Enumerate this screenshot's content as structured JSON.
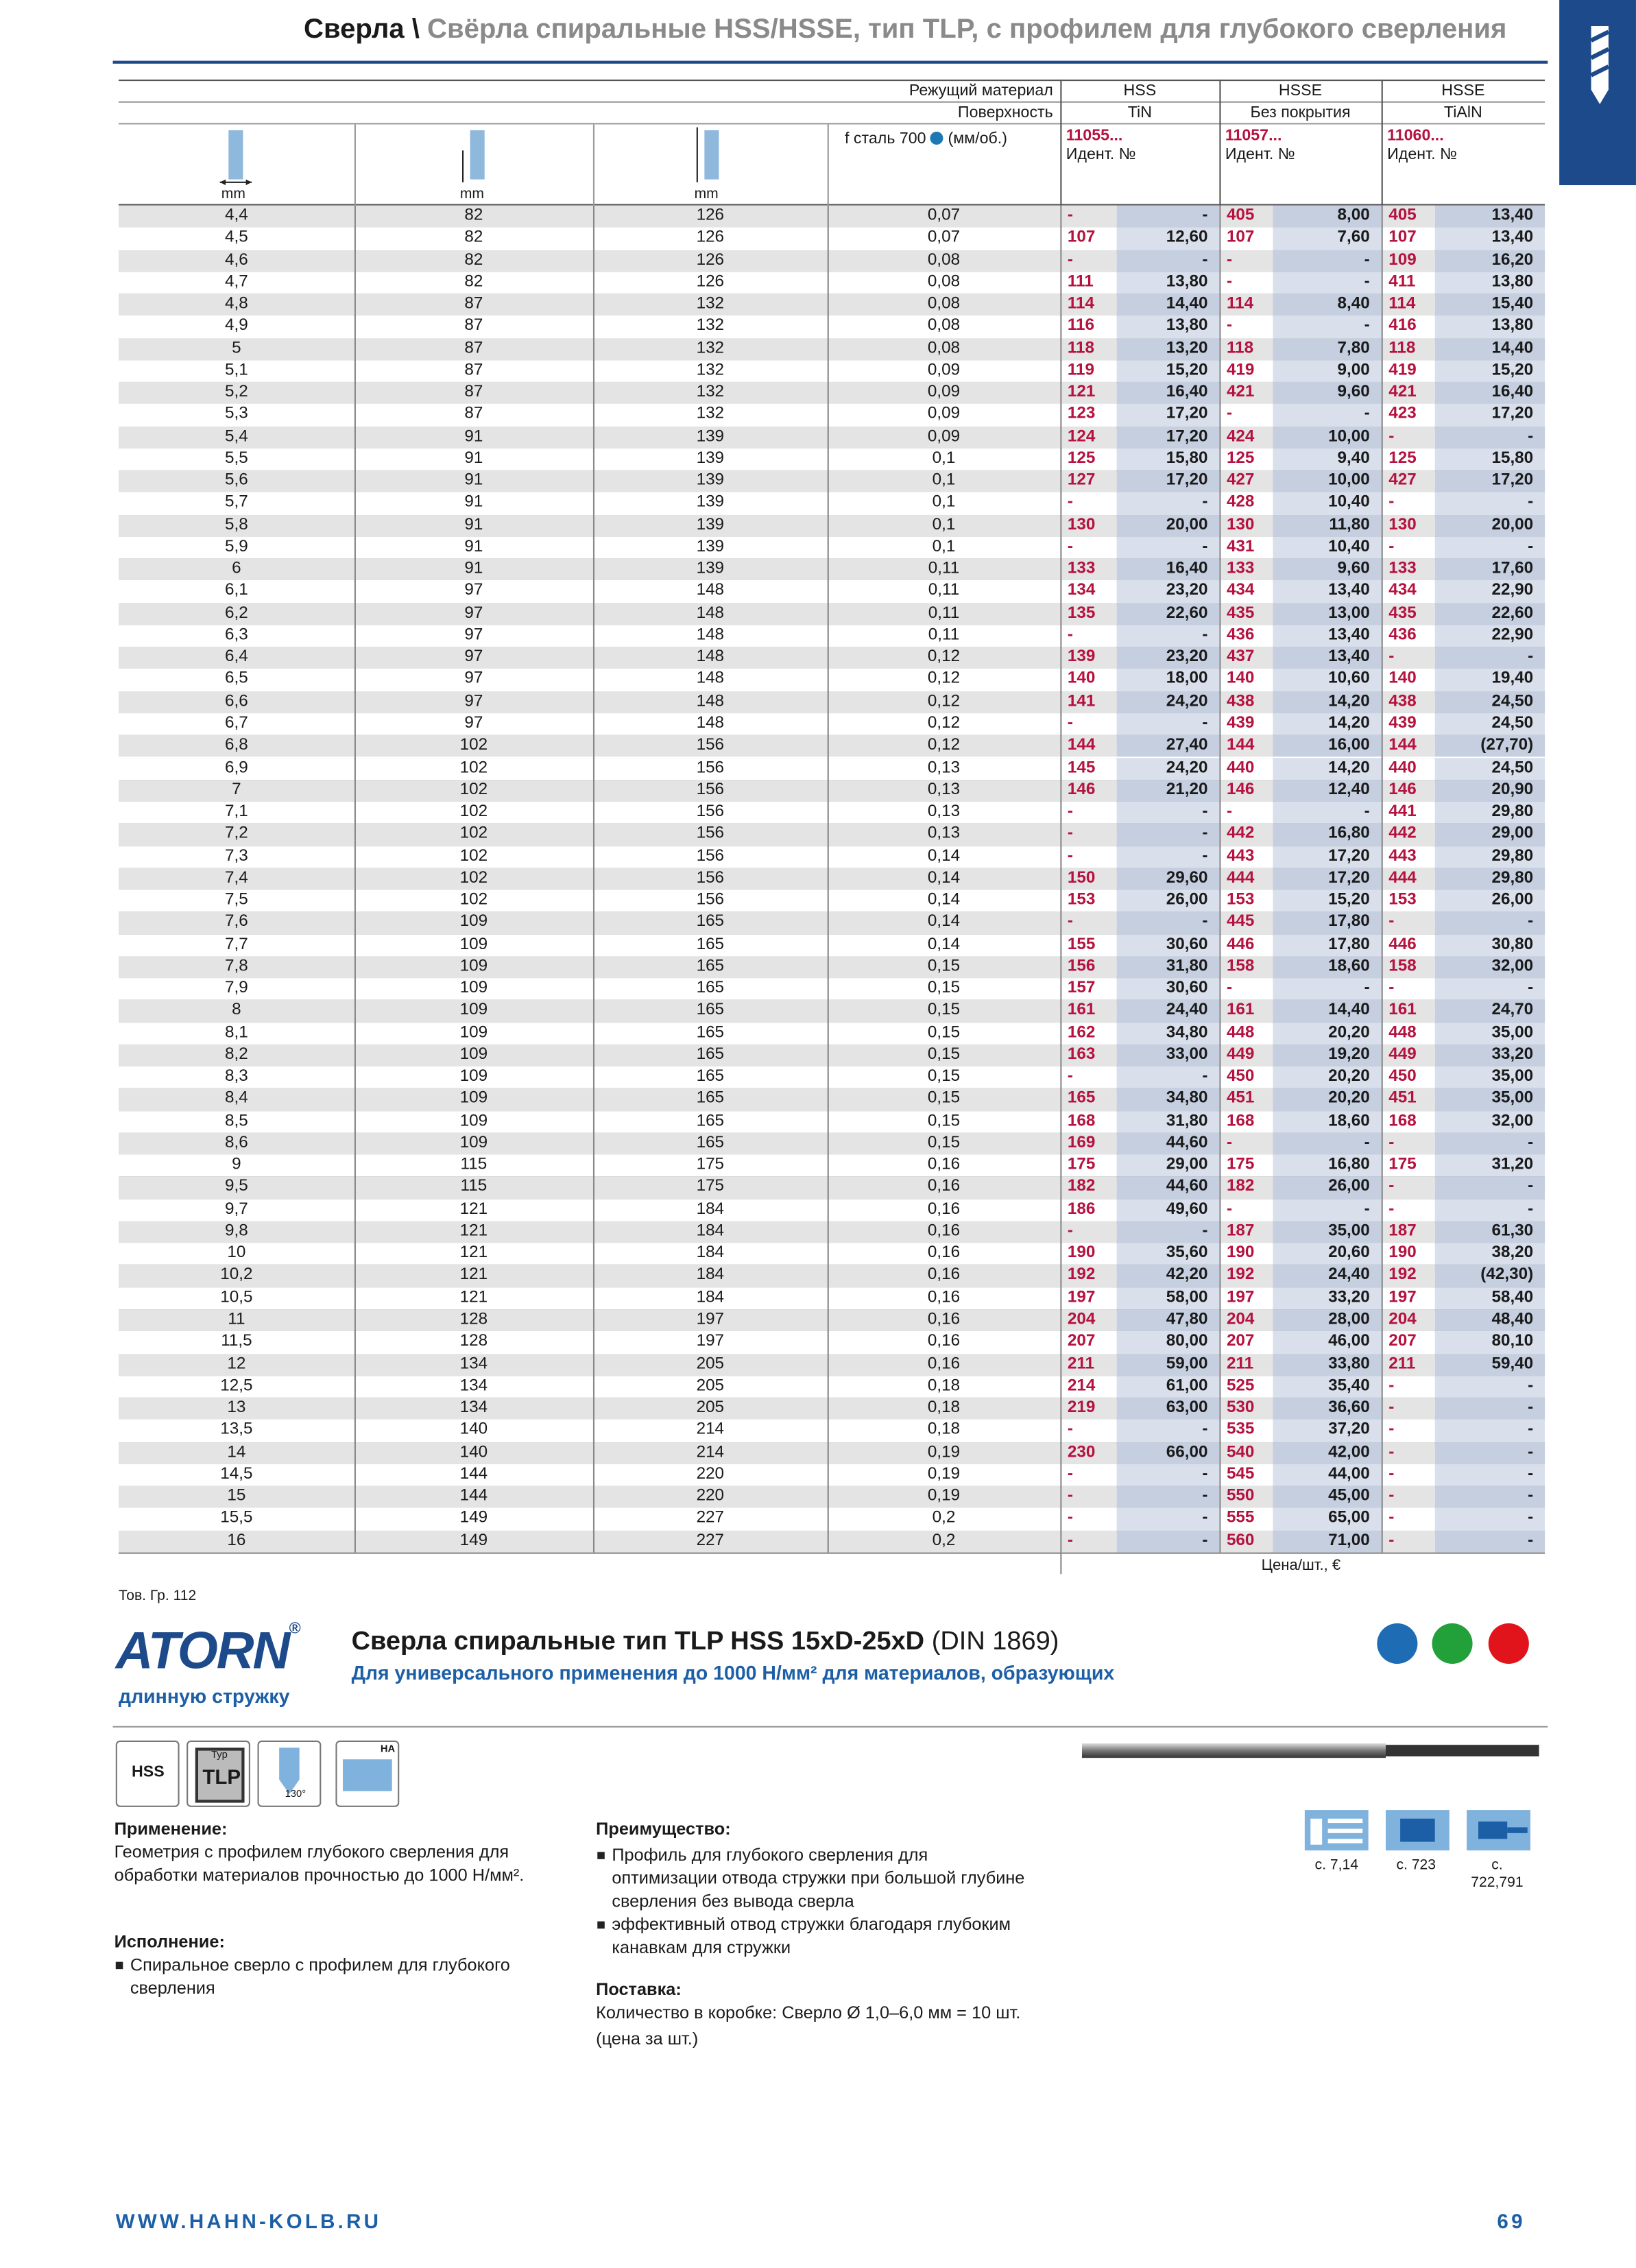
{
  "header": {
    "category": "Сверла \\",
    "title": "Свёрла спиральные HSS/HSSE, тип TLP, с профилем для глубокого сверления"
  },
  "table": {
    "material_label": "Режущий материал",
    "surface_label": "Поверхность",
    "feed_label": "f сталь 700",
    "feed_unit": "(мм/об.)",
    "materials": [
      "HSS",
      "HSSE",
      "HSSE"
    ],
    "surfaces": [
      "TiN",
      "Без покрытия",
      "TiAlN"
    ],
    "article_numbers": [
      "11055...",
      "11057...",
      "11060..."
    ],
    "id_labels": [
      "Идент. №",
      "Идент. №",
      "Идент. №"
    ],
    "units": [
      "mm",
      "mm",
      "mm"
    ],
    "rows": [
      [
        "4,4",
        "82",
        "126",
        "0,07",
        "-",
        "-",
        "405",
        "8,00",
        "405",
        "13,40"
      ],
      [
        "4,5",
        "82",
        "126",
        "0,07",
        "107",
        "12,60",
        "107",
        "7,60",
        "107",
        "13,40"
      ],
      [
        "4,6",
        "82",
        "126",
        "0,08",
        "-",
        "-",
        "-",
        "-",
        "109",
        "16,20"
      ],
      [
        "4,7",
        "82",
        "126",
        "0,08",
        "111",
        "13,80",
        "-",
        "-",
        "411",
        "13,80"
      ],
      [
        "4,8",
        "87",
        "132",
        "0,08",
        "114",
        "14,40",
        "114",
        "8,40",
        "114",
        "15,40"
      ],
      [
        "4,9",
        "87",
        "132",
        "0,08",
        "116",
        "13,80",
        "-",
        "-",
        "416",
        "13,80"
      ],
      [
        "5",
        "87",
        "132",
        "0,08",
        "118",
        "13,20",
        "118",
        "7,80",
        "118",
        "14,40"
      ],
      [
        "5,1",
        "87",
        "132",
        "0,09",
        "119",
        "15,20",
        "419",
        "9,00",
        "419",
        "15,20"
      ],
      [
        "5,2",
        "87",
        "132",
        "0,09",
        "121",
        "16,40",
        "421",
        "9,60",
        "421",
        "16,40"
      ],
      [
        "5,3",
        "87",
        "132",
        "0,09",
        "123",
        "17,20",
        "-",
        "-",
        "423",
        "17,20"
      ],
      [
        "5,4",
        "91",
        "139",
        "0,09",
        "124",
        "17,20",
        "424",
        "10,00",
        "-",
        "-"
      ],
      [
        "5,5",
        "91",
        "139",
        "0,1",
        "125",
        "15,80",
        "125",
        "9,40",
        "125",
        "15,80"
      ],
      [
        "5,6",
        "91",
        "139",
        "0,1",
        "127",
        "17,20",
        "427",
        "10,00",
        "427",
        "17,20"
      ],
      [
        "5,7",
        "91",
        "139",
        "0,1",
        "-",
        "-",
        "428",
        "10,40",
        "-",
        "-"
      ],
      [
        "5,8",
        "91",
        "139",
        "0,1",
        "130",
        "20,00",
        "130",
        "11,80",
        "130",
        "20,00"
      ],
      [
        "5,9",
        "91",
        "139",
        "0,1",
        "-",
        "-",
        "431",
        "10,40",
        "-",
        "-"
      ],
      [
        "6",
        "91",
        "139",
        "0,11",
        "133",
        "16,40",
        "133",
        "9,60",
        "133",
        "17,60"
      ],
      [
        "6,1",
        "97",
        "148",
        "0,11",
        "134",
        "23,20",
        "434",
        "13,40",
        "434",
        "22,90"
      ],
      [
        "6,2",
        "97",
        "148",
        "0,11",
        "135",
        "22,60",
        "435",
        "13,00",
        "435",
        "22,60"
      ],
      [
        "6,3",
        "97",
        "148",
        "0,11",
        "-",
        "-",
        "436",
        "13,40",
        "436",
        "22,90"
      ],
      [
        "6,4",
        "97",
        "148",
        "0,12",
        "139",
        "23,20",
        "437",
        "13,40",
        "-",
        "-"
      ],
      [
        "6,5",
        "97",
        "148",
        "0,12",
        "140",
        "18,00",
        "140",
        "10,60",
        "140",
        "19,40"
      ],
      [
        "6,6",
        "97",
        "148",
        "0,12",
        "141",
        "24,20",
        "438",
        "14,20",
        "438",
        "24,50"
      ],
      [
        "6,7",
        "97",
        "148",
        "0,12",
        "-",
        "-",
        "439",
        "14,20",
        "439",
        "24,50"
      ],
      [
        "6,8",
        "102",
        "156",
        "0,12",
        "144",
        "27,40",
        "144",
        "16,00",
        "144",
        "(27,70)"
      ],
      [
        "6,9",
        "102",
        "156",
        "0,13",
        "145",
        "24,20",
        "440",
        "14,20",
        "440",
        "24,50"
      ],
      [
        "7",
        "102",
        "156",
        "0,13",
        "146",
        "21,20",
        "146",
        "12,40",
        "146",
        "20,90"
      ],
      [
        "7,1",
        "102",
        "156",
        "0,13",
        "-",
        "-",
        "-",
        "-",
        "441",
        "29,80"
      ],
      [
        "7,2",
        "102",
        "156",
        "0,13",
        "-",
        "-",
        "442",
        "16,80",
        "442",
        "29,00"
      ],
      [
        "7,3",
        "102",
        "156",
        "0,14",
        "-",
        "-",
        "443",
        "17,20",
        "443",
        "29,80"
      ],
      [
        "7,4",
        "102",
        "156",
        "0,14",
        "150",
        "29,60",
        "444",
        "17,20",
        "444",
        "29,80"
      ],
      [
        "7,5",
        "102",
        "156",
        "0,14",
        "153",
        "26,00",
        "153",
        "15,20",
        "153",
        "26,00"
      ],
      [
        "7,6",
        "109",
        "165",
        "0,14",
        "-",
        "-",
        "445",
        "17,80",
        "-",
        "-"
      ],
      [
        "7,7",
        "109",
        "165",
        "0,14",
        "155",
        "30,60",
        "446",
        "17,80",
        "446",
        "30,80"
      ],
      [
        "7,8",
        "109",
        "165",
        "0,15",
        "156",
        "31,80",
        "158",
        "18,60",
        "158",
        "32,00"
      ],
      [
        "7,9",
        "109",
        "165",
        "0,15",
        "157",
        "30,60",
        "-",
        "-",
        "-",
        "-"
      ],
      [
        "8",
        "109",
        "165",
        "0,15",
        "161",
        "24,40",
        "161",
        "14,40",
        "161",
        "24,70"
      ],
      [
        "8,1",
        "109",
        "165",
        "0,15",
        "162",
        "34,80",
        "448",
        "20,20",
        "448",
        "35,00"
      ],
      [
        "8,2",
        "109",
        "165",
        "0,15",
        "163",
        "33,00",
        "449",
        "19,20",
        "449",
        "33,20"
      ],
      [
        "8,3",
        "109",
        "165",
        "0,15",
        "-",
        "-",
        "450",
        "20,20",
        "450",
        "35,00"
      ],
      [
        "8,4",
        "109",
        "165",
        "0,15",
        "165",
        "34,80",
        "451",
        "20,20",
        "451",
        "35,00"
      ],
      [
        "8,5",
        "109",
        "165",
        "0,15",
        "168",
        "31,80",
        "168",
        "18,60",
        "168",
        "32,00"
      ],
      [
        "8,6",
        "109",
        "165",
        "0,15",
        "169",
        "44,60",
        "-",
        "-",
        "-",
        "-"
      ],
      [
        "9",
        "115",
        "175",
        "0,16",
        "175",
        "29,00",
        "175",
        "16,80",
        "175",
        "31,20"
      ],
      [
        "9,5",
        "115",
        "175",
        "0,16",
        "182",
        "44,60",
        "182",
        "26,00",
        "-",
        "-"
      ],
      [
        "9,7",
        "121",
        "184",
        "0,16",
        "186",
        "49,60",
        "-",
        "-",
        "-",
        "-"
      ],
      [
        "9,8",
        "121",
        "184",
        "0,16",
        "-",
        "-",
        "187",
        "35,00",
        "187",
        "61,30"
      ],
      [
        "10",
        "121",
        "184",
        "0,16",
        "190",
        "35,60",
        "190",
        "20,60",
        "190",
        "38,20"
      ],
      [
        "10,2",
        "121",
        "184",
        "0,16",
        "192",
        "42,20",
        "192",
        "24,40",
        "192",
        "(42,30)"
      ],
      [
        "10,5",
        "121",
        "184",
        "0,16",
        "197",
        "58,00",
        "197",
        "33,20",
        "197",
        "58,40"
      ],
      [
        "11",
        "128",
        "197",
        "0,16",
        "204",
        "47,80",
        "204",
        "28,00",
        "204",
        "48,40"
      ],
      [
        "11,5",
        "128",
        "197",
        "0,16",
        "207",
        "80,00",
        "207",
        "46,00",
        "207",
        "80,10"
      ],
      [
        "12",
        "134",
        "205",
        "0,16",
        "211",
        "59,00",
        "211",
        "33,80",
        "211",
        "59,40"
      ],
      [
        "12,5",
        "134",
        "205",
        "0,18",
        "214",
        "61,00",
        "525",
        "35,40",
        "-",
        "-"
      ],
      [
        "13",
        "134",
        "205",
        "0,18",
        "219",
        "63,00",
        "530",
        "36,60",
        "-",
        "-"
      ],
      [
        "13,5",
        "140",
        "214",
        "0,18",
        "-",
        "-",
        "535",
        "37,20",
        "-",
        "-"
      ],
      [
        "14",
        "140",
        "214",
        "0,19",
        "230",
        "66,00",
        "540",
        "42,00",
        "-",
        "-"
      ],
      [
        "14,5",
        "144",
        "220",
        "0,19",
        "-",
        "-",
        "545",
        "44,00",
        "-",
        "-"
      ],
      [
        "15",
        "144",
        "220",
        "0,19",
        "-",
        "-",
        "550",
        "45,00",
        "-",
        "-"
      ],
      [
        "15,5",
        "149",
        "227",
        "0,2",
        "-",
        "-",
        "555",
        "65,00",
        "-",
        "-"
      ],
      [
        "16",
        "149",
        "227",
        "0,2",
        "-",
        "-",
        "560",
        "71,00",
        "-",
        "-"
      ]
    ],
    "price_note": "Цена/шт., €"
  },
  "product": {
    "group": "Тов. Гр. 112",
    "brand": "ATORN",
    "title": "Сверла спиральные тип TLP HSS 15xD-25xD",
    "standard": "(DIN 1869)",
    "subtitle": "Для универсального применения до 1000 Н/мм² для материалов, образующих",
    "subtitle_cont": "длинную стружку",
    "badges": [
      "HSS",
      "Typ",
      "TLP",
      "130°",
      "HA"
    ],
    "application": {
      "heading": "Применение:",
      "text": "Геометрия с профилем глубокого сверления для обработки материалов прочностью до 1000 Н/мм²."
    },
    "design": {
      "heading": "Исполнение:",
      "items": [
        "Спиральное сверло с профилем для глубокого сверления"
      ]
    },
    "advantages": {
      "heading": "Преимущество:",
      "items": [
        "Профиль для глубокого сверления для оптимизации отвода стружки при большой глубине сверления без вывода сверла",
        "эффективный отвод стружки благодаря глубоким канавкам для стружки"
      ]
    },
    "delivery": {
      "heading": "Поставка:",
      "text": "Количество в коробке: Сверло Ø 1,0–6,0 мм = 10 шт.",
      "note": "(цена за шт.)"
    },
    "refs": [
      "с. 7,14",
      "с. 723",
      "с. 722,791"
    ]
  },
  "footer": {
    "url": "WWW.HAHN-KOLB.RU",
    "page": "69"
  }
}
